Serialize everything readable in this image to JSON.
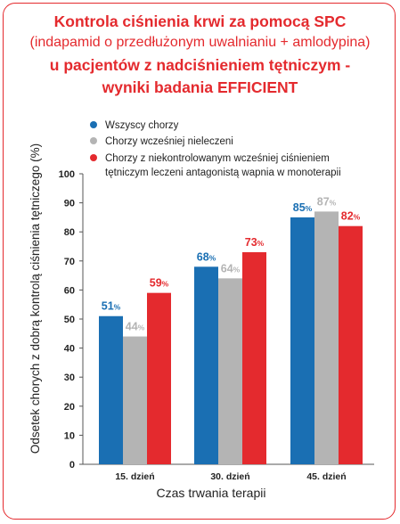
{
  "title": {
    "line1": "Kontrola ciśnienia krwi za pomocą SPC",
    "line2": "(indapamid o przedłużonym uwalnianiu + amlodypina)",
    "line3": "u pacjentów z nadciśnieniem tętniczym -",
    "line4": "wyniki badania EFFICIENT"
  },
  "colors": {
    "accent": "#e42a2e",
    "series": [
      "#1a6fb3",
      "#b4b4b4",
      "#e42a2e"
    ]
  },
  "chart_data": {
    "type": "bar",
    "categories": [
      "15. dzień",
      "30. dzień",
      "45. dzień"
    ],
    "series": [
      {
        "name": "Wszyscy chorzy",
        "values": [
          51,
          68,
          85
        ],
        "labels": [
          "51",
          "68",
          "85"
        ]
      },
      {
        "name": "Chorzy wcześniej nieleczeni",
        "values": [
          44,
          64,
          87
        ],
        "labels": [
          "44",
          "64",
          "87"
        ]
      },
      {
        "name_lines": [
          "Chorzy z niekontrolowanym wcześniej ciśnieniem",
          "tętniczym leczeni antagonistą wapnia w monoterapii"
        ],
        "values": [
          59,
          73,
          82
        ],
        "labels": [
          "59",
          "73",
          "82"
        ]
      }
    ],
    "value_suffix": "%",
    "xlabel": "Czas trwania terapii",
    "ylabel": "Odsetek chorych z dobrą kontrolą ciśnienia tętniczego (%)",
    "ylim": [
      0,
      100
    ],
    "yticks": [
      "0",
      "10",
      "20",
      "30",
      "40",
      "50",
      "60",
      "70",
      "80",
      "90",
      "100"
    ],
    "grid": false,
    "legend": "top-left"
  }
}
